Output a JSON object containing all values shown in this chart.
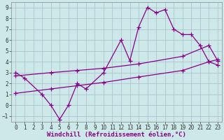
{
  "xlabel": "Windchill (Refroidissement éolien,°C)",
  "line1_x": [
    0,
    1,
    3,
    4,
    5,
    6,
    7,
    8,
    10,
    12,
    13,
    14,
    15,
    16,
    17,
    18,
    19,
    20,
    21,
    22,
    23
  ],
  "line1_y": [
    3.0,
    2.5,
    1.0,
    0.0,
    -1.3,
    0.0,
    2.0,
    1.5,
    3.0,
    6.0,
    4.1,
    7.2,
    9.0,
    8.5,
    8.8,
    7.0,
    6.5,
    6.5,
    5.5,
    4.0,
    4.2
  ],
  "line2_x": [
    0,
    4,
    7,
    10,
    14,
    19,
    22,
    23
  ],
  "line2_y": [
    2.7,
    3.0,
    3.2,
    3.4,
    3.8,
    4.5,
    5.5,
    4.1
  ],
  "line3_x": [
    0,
    4,
    7,
    10,
    14,
    19,
    22,
    23
  ],
  "line3_y": [
    1.1,
    1.5,
    1.8,
    2.1,
    2.6,
    3.2,
    4.0,
    3.7
  ],
  "line_color": "#880088",
  "marker": "+",
  "markersize": 4,
  "linewidth": 0.9,
  "bg_color": "#cce8e8",
  "grid_color": "#aabccc",
  "xlim": [
    -0.5,
    23.5
  ],
  "ylim": [
    -1.5,
    9.5
  ],
  "yticks": [
    -1,
    0,
    1,
    2,
    3,
    4,
    5,
    6,
    7,
    8,
    9
  ],
  "xticks": [
    0,
    1,
    2,
    3,
    4,
    5,
    6,
    7,
    8,
    9,
    10,
    11,
    12,
    13,
    14,
    15,
    16,
    17,
    18,
    19,
    20,
    21,
    22,
    23
  ],
  "tick_fontsize": 5.5,
  "xlabel_fontsize": 6.5
}
